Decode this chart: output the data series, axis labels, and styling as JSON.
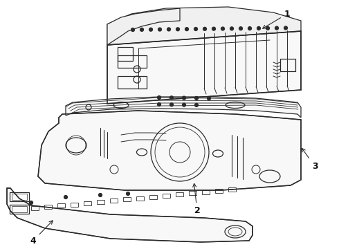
{
  "background_color": "#ffffff",
  "line_color": "#2a2a2a",
  "line_width": 0.9,
  "label_fontsize": 9,
  "arrow_color": "#2a2a2a"
}
